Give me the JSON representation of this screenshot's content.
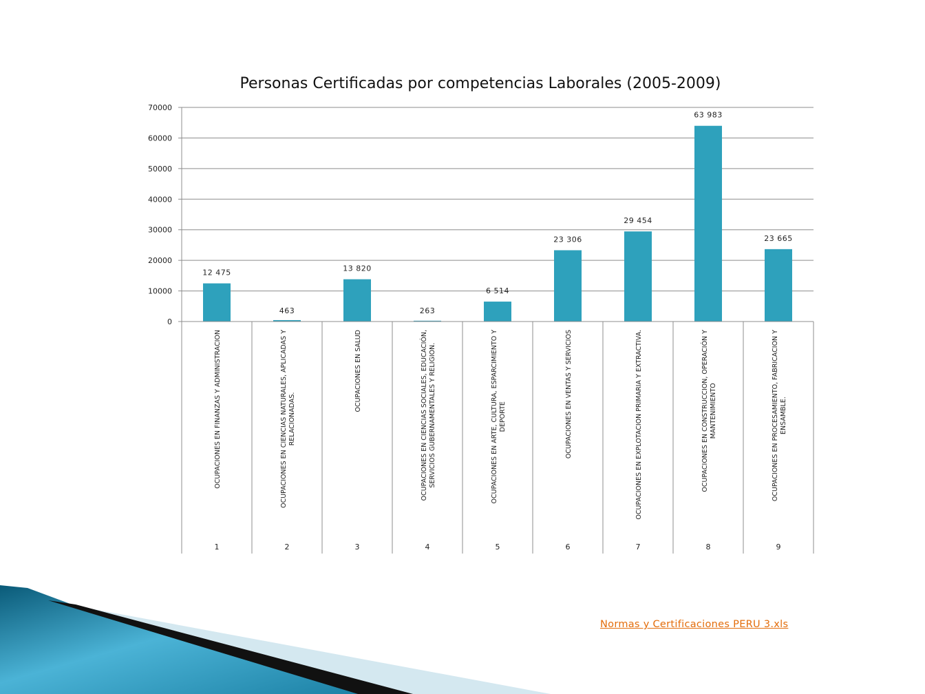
{
  "chart_data": {
    "type": "bar",
    "title": "Personas Certificadas por competencias Laborales (2005-2009)",
    "xlabel": "",
    "ylabel": "",
    "ylim": [
      0,
      70000
    ],
    "y_ticks": [
      "0",
      "10000",
      "20000",
      "30000",
      "40000",
      "50000",
      "60000",
      "70000"
    ],
    "grid": true,
    "legend": "none",
    "bar_color": "#2ea1bc",
    "categories": [
      {
        "index": "1",
        "lines": [
          "OCUPACIONES EN FINANZAS Y ADMINISTRACION"
        ]
      },
      {
        "index": "2",
        "lines": [
          "OCUPACIONES EN CIENCIAS NATURALES, APLICADAS Y",
          "RELACIONADAS."
        ]
      },
      {
        "index": "3",
        "lines": [
          "OCUPACIONES EN SALUD"
        ]
      },
      {
        "index": "4",
        "lines": [
          "OCUPACIONES EN CIENCIAS SOCIALES, EDUCACIÓN,",
          "SERVICIOS GUBERNAMENTALES Y RELIGION."
        ]
      },
      {
        "index": "5",
        "lines": [
          "OCUPACIONES EN ARTE, CULTURA, ESPARCIMIENTO Y",
          "DEPORTE"
        ]
      },
      {
        "index": "6",
        "lines": [
          "OCUPACIONES EN VENTAS Y SERVICIOS"
        ]
      },
      {
        "index": "7",
        "lines": [
          "OCUPACIONES EN EXPLOTACION PRIMARIA Y EXTRACTIVA."
        ]
      },
      {
        "index": "8",
        "lines": [
          "OCUPACIONES EN CONSTRUCCION, OPERACIÓN Y",
          "MANTENIMIENTO"
        ]
      },
      {
        "index": "9",
        "lines": [
          "OCUPACIONES EN PROCESAMIENTO, FABRICACION Y",
          "ENSAMBLE."
        ]
      }
    ],
    "values": [
      12475,
      463,
      13820,
      263,
      6514,
      23306,
      29454,
      63983,
      23665
    ],
    "value_labels": [
      "12 475",
      "463",
      "13 820",
      "263",
      "6 514",
      "23 306",
      "29 454",
      "63 983",
      "23 665"
    ]
  },
  "link": {
    "text": "Normas y Certificaciones PERU 3.xls"
  }
}
